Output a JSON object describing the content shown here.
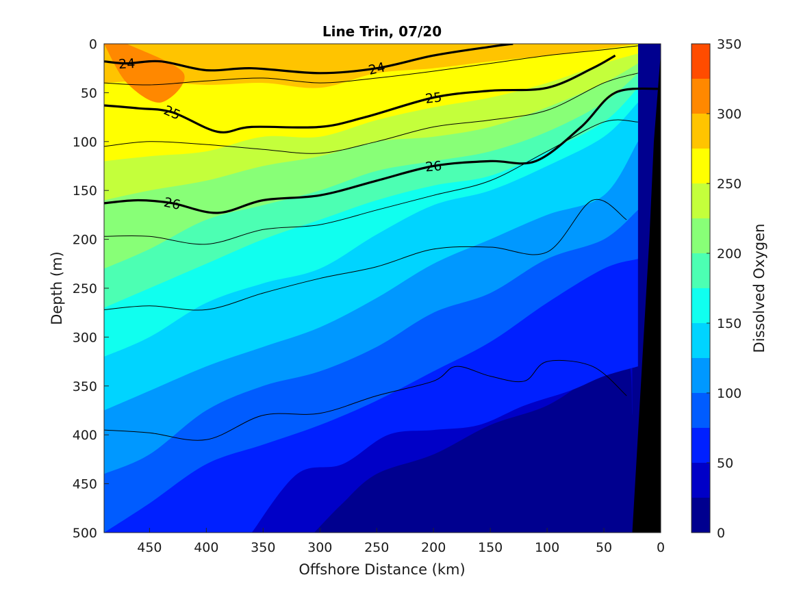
{
  "chart_data": {
    "type": "heatmap",
    "subtype": "filled-contour-section",
    "title": "Line Trin, 07/20",
    "xlabel": "Offshore Distance (km)",
    "ylabel": "Depth (m)",
    "colorbar_label": "Dissolved Oxygen",
    "xlim": [
      490,
      0
    ],
    "ylim": [
      500,
      0
    ],
    "x_direction": "reversed",
    "y_direction": "reversed",
    "xticks": [
      "450",
      "400",
      "350",
      "300",
      "250",
      "200",
      "150",
      "100",
      "50",
      "0"
    ],
    "yticks": [
      "0",
      "50",
      "100",
      "150",
      "200",
      "250",
      "300",
      "350",
      "400",
      "450",
      "500"
    ],
    "colorbar": {
      "range": [
        0,
        350
      ],
      "ticks": [
        "0",
        "50",
        "100",
        "150",
        "200",
        "250",
        "300",
        "350"
      ],
      "levels": [
        0,
        25,
        50,
        75,
        100,
        125,
        150,
        175,
        200,
        225,
        250,
        275,
        300,
        325,
        350
      ],
      "colors": [
        "#00008f",
        "#0000c7",
        "#0020ff",
        "#005cff",
        "#0098ff",
        "#00d4ff",
        "#10ffef",
        "#4cffb3",
        "#88ff77",
        "#c4ff3b",
        "#ffff00",
        "#ffc400",
        "#ff8800",
        "#ff4c00",
        "#ff1000",
        "#c80000"
      ]
    },
    "bathymetry": {
      "color": "#000000",
      "note": "steep shelf near 0 km",
      "x": [
        25,
        10,
        6,
        0,
        0,
        25
      ],
      "y": [
        500,
        200,
        100,
        10,
        500,
        500
      ]
    },
    "oxygen_boundaries": [
      {
        "level": 275,
        "x": [
          490,
          450,
          400,
          350,
          300,
          250,
          200,
          150,
          100,
          50,
          20
        ],
        "y": [
          40,
          38,
          42,
          40,
          45,
          30,
          25,
          18,
          12,
          5,
          0
        ]
      },
      {
        "level": 250,
        "x": [
          490,
          450,
          400,
          350,
          300,
          250,
          200,
          150,
          100,
          50,
          20
        ],
        "y": [
          120,
          115,
          110,
          95,
          95,
          78,
          65,
          55,
          40,
          20,
          10
        ]
      },
      {
        "level": 225,
        "x": [
          490,
          450,
          400,
          350,
          300,
          250,
          200,
          150,
          100,
          50,
          20
        ],
        "y": [
          160,
          150,
          140,
          125,
          115,
          100,
          95,
          85,
          65,
          40,
          20
        ]
      },
      {
        "level": 200,
        "x": [
          490,
          450,
          400,
          350,
          300,
          250,
          200,
          150,
          100,
          50,
          20
        ],
        "y": [
          230,
          210,
          180,
          165,
          150,
          130,
          120,
          110,
          90,
          60,
          30
        ]
      },
      {
        "level": 175,
        "x": [
          490,
          450,
          400,
          350,
          300,
          250,
          200,
          150,
          100,
          50,
          20
        ],
        "y": [
          270,
          250,
          225,
          200,
          180,
          160,
          145,
          135,
          110,
          80,
          45
        ]
      },
      {
        "level": 150,
        "x": [
          490,
          450,
          400,
          350,
          300,
          250,
          200,
          150,
          100,
          50,
          20
        ],
        "y": [
          320,
          300,
          265,
          245,
          230,
          195,
          165,
          150,
          125,
          95,
          60
        ]
      },
      {
        "level": 125,
        "x": [
          490,
          450,
          400,
          350,
          300,
          250,
          200,
          150,
          100,
          50,
          20
        ],
        "y": [
          375,
          355,
          330,
          310,
          290,
          260,
          225,
          200,
          175,
          155,
          100
        ]
      },
      {
        "level": 100,
        "x": [
          490,
          450,
          400,
          350,
          300,
          250,
          200,
          150,
          100,
          50,
          20
        ],
        "y": [
          440,
          420,
          375,
          350,
          335,
          310,
          275,
          255,
          220,
          200,
          170
        ]
      },
      {
        "level": 75,
        "x": [
          490,
          450,
          400,
          350,
          300,
          250,
          200,
          150,
          100,
          50,
          20
        ],
        "y": [
          500,
          470,
          430,
          410,
          390,
          365,
          335,
          305,
          265,
          230,
          220
        ]
      },
      {
        "level": 50,
        "x": [
          360,
          320,
          280,
          240,
          200,
          160,
          120,
          80,
          50,
          20
        ],
        "y": [
          500,
          440,
          430,
          400,
          395,
          390,
          370,
          355,
          340,
          330
        ]
      },
      {
        "level": 25,
        "x": [
          305,
          280,
          250,
          200,
          150,
          100,
          60,
          30,
          25
        ],
        "y": [
          500,
          470,
          440,
          420,
          390,
          370,
          340,
          320,
          380
        ]
      }
    ],
    "density_contours": [
      {
        "label": "24",
        "bold": true,
        "x": [
          490,
          470,
          440,
          400,
          360,
          300,
          250,
          200,
          150,
          130
        ],
        "y": [
          18,
          20,
          18,
          27,
          25,
          30,
          25,
          12,
          3,
          0
        ]
      },
      {
        "label": "25",
        "bold": true,
        "x": [
          490,
          460,
          430,
          390,
          360,
          300,
          260,
          200,
          150,
          100,
          60,
          40
        ],
        "y": [
          63,
          66,
          70,
          90,
          85,
          85,
          75,
          55,
          48,
          45,
          25,
          12
        ]
      },
      {
        "label": "26",
        "bold": true,
        "x": [
          490,
          460,
          430,
          390,
          350,
          300,
          250,
          200,
          150,
          110,
          70,
          40,
          0
        ],
        "y": [
          163,
          160,
          163,
          173,
          160,
          155,
          140,
          125,
          120,
          120,
          85,
          50,
          46
        ]
      },
      {
        "label": "",
        "bold": false,
        "x": [
          490,
          450,
          400,
          350,
          300,
          250,
          200,
          150,
          100,
          50,
          20
        ],
        "y": [
          40,
          42,
          38,
          35,
          40,
          35,
          28,
          20,
          12,
          6,
          2
        ]
      },
      {
        "label": "",
        "bold": false,
        "x": [
          490,
          450,
          400,
          350,
          300,
          250,
          200,
          150,
          100,
          50,
          20
        ],
        "y": [
          105,
          100,
          103,
          108,
          112,
          100,
          85,
          78,
          68,
          40,
          30
        ]
      },
      {
        "label": "",
        "bold": false,
        "x": [
          490,
          450,
          400,
          350,
          300,
          250,
          200,
          150,
          100,
          50,
          20
        ],
        "y": [
          197,
          197,
          205,
          190,
          185,
          170,
          155,
          140,
          110,
          80,
          80
        ]
      },
      {
        "label": "",
        "bold": false,
        "x": [
          490,
          450,
          400,
          350,
          300,
          250,
          200,
          150,
          100,
          60,
          30
        ],
        "y": [
          272,
          268,
          272,
          255,
          240,
          228,
          210,
          208,
          213,
          160,
          180
        ]
      },
      {
        "label": "",
        "bold": false,
        "x": [
          490,
          450,
          400,
          350,
          300,
          250,
          200,
          180,
          150,
          120,
          100,
          60,
          30
        ],
        "y": [
          395,
          398,
          405,
          380,
          378,
          360,
          345,
          330,
          340,
          345,
          325,
          330,
          360
        ]
      }
    ]
  }
}
